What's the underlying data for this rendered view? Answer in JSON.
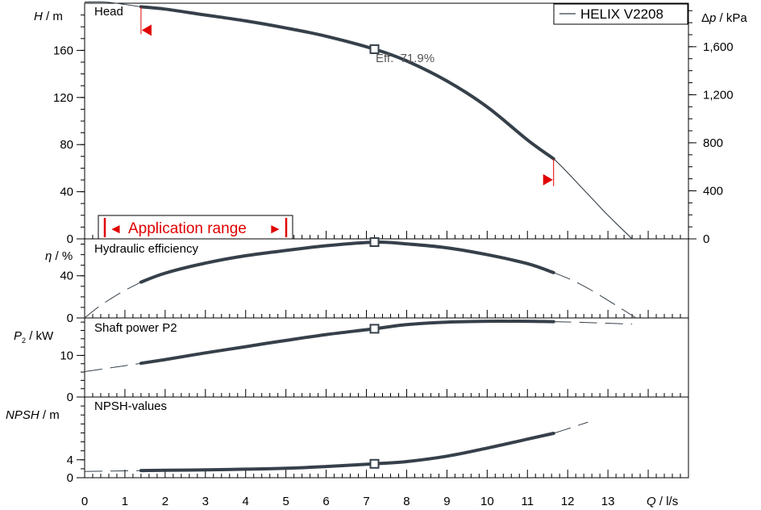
{
  "legend": {
    "label": "HELIX V2208"
  },
  "x_axis": {
    "label_var": "Q",
    "label_unit": "l/s",
    "ticks": [
      "0",
      "1",
      "2",
      "3",
      "4",
      "5",
      "6",
      "7",
      "8",
      "9",
      "10",
      "11",
      "12",
      "13"
    ]
  },
  "annotations": {
    "efficiency": "Eff.  71.9%",
    "application_range": "Application range",
    "left_arrow": "◄",
    "right_arrow": "►"
  },
  "chart_data": [
    {
      "type": "line",
      "panel": "head",
      "title": "Head",
      "ylabel_var": "H",
      "ylabel_unit": "m",
      "ylabel2_prefix": "Δ",
      "ylabel2_var": "p",
      "ylabel2_unit": "kPa",
      "xlim": [
        0,
        15
      ],
      "ylim": [
        0,
        200
      ],
      "y_ticks": [
        "0",
        "40",
        "80",
        "120",
        "160"
      ],
      "y2_ticks": [
        "0",
        "400",
        "800",
        "1,200",
        "1,600"
      ],
      "series": [
        {
          "name": "HELIX V2208",
          "style": "full-curve",
          "x": [
            0,
            0.5,
            1,
            1.4,
            2,
            3,
            4,
            5,
            6,
            7.2,
            8,
            9,
            10,
            11,
            11.65,
            12.5,
            13,
            13.6
          ],
          "y": [
            201,
            201,
            199,
            197,
            195,
            190,
            185,
            179,
            172,
            161,
            151,
            134,
            112,
            84,
            68,
            38,
            20,
            0
          ]
        },
        {
          "name": "HELIX V2208",
          "style": "operating-range",
          "x": [
            1.4,
            2,
            3,
            4,
            5,
            6,
            7.2,
            8,
            9,
            10,
            11,
            11.65
          ],
          "y": [
            197,
            195,
            190,
            185,
            179,
            172,
            161,
            151,
            134,
            112,
            84,
            68
          ]
        }
      ],
      "duty_point": {
        "x": 7.2,
        "y": 161
      },
      "range_limits": {
        "q_min": 1.4,
        "q_max": 11.65
      }
    },
    {
      "type": "line",
      "panel": "efficiency",
      "title": "Hydraulic efficiency",
      "ylabel_var": "η",
      "ylabel_unit": "%",
      "xlim": [
        0,
        15
      ],
      "ylim": [
        0,
        75
      ],
      "y_ticks": [
        "0",
        "40"
      ],
      "series": [
        {
          "name": "efficiency",
          "x": [
            1.4,
            2,
            3,
            4,
            5,
            6,
            7.2,
            8,
            9,
            10,
            11,
            11.65
          ],
          "y": [
            34,
            42.5,
            52,
            59,
            64,
            68.5,
            71.9,
            70.2,
            66.5,
            60,
            51.5,
            43
          ]
        }
      ],
      "extension": {
        "x": [
          0,
          0.4,
          0.9,
          1.4,
          11.65,
          12.1,
          12.6,
          13.2,
          13.7
        ],
        "y": [
          0,
          12,
          24,
          34,
          43,
          36,
          26,
          12,
          0
        ]
      },
      "duty_point": {
        "x": 7.2,
        "y": 71.9
      }
    },
    {
      "type": "line",
      "panel": "power",
      "title": "Shaft power P2",
      "ylabel_var": "P",
      "ylabel_sub": "2",
      "ylabel_unit": "kW",
      "xlim": [
        0,
        15
      ],
      "ylim": [
        0,
        19
      ],
      "y_ticks": [
        "0",
        "10"
      ],
      "series": [
        {
          "name": "P2",
          "x": [
            1.4,
            2,
            3,
            4,
            5,
            6,
            7.2,
            8,
            9,
            10,
            11,
            11.65
          ],
          "y": [
            8.1,
            9,
            10.6,
            12.1,
            13.6,
            15,
            16.4,
            17.4,
            18,
            18.2,
            18.2,
            18.1
          ]
        }
      ],
      "extension": {
        "x": [
          0,
          0.7,
          1.4,
          11.65,
          12.5,
          13.6
        ],
        "y": [
          6.1,
          7.1,
          8.1,
          18.1,
          17.9,
          17.5
        ]
      },
      "duty_point": {
        "x": 7.2,
        "y": 16.4
      }
    },
    {
      "type": "line",
      "panel": "npsh",
      "title": "NPSH-values",
      "ylabel_var": "NPSH",
      "ylabel_unit": "m",
      "xlim": [
        0,
        15
      ],
      "ylim": [
        0,
        18
      ],
      "y_ticks": [
        "0",
        "4"
      ],
      "series": [
        {
          "name": "NPSH",
          "x": [
            1.4,
            2,
            3,
            4,
            5,
            6,
            7.2,
            8,
            9,
            10,
            11,
            11.65
          ],
          "y": [
            1.6,
            1.65,
            1.75,
            1.9,
            2.1,
            2.5,
            3.1,
            3.6,
            4.8,
            6.6,
            8.6,
            9.9
          ]
        }
      ],
      "extension": {
        "x": [
          0,
          0.7,
          1.4,
          11.65,
          12.1,
          12.5
        ],
        "y": [
          1.4,
          1.5,
          1.6,
          9.9,
          11.2,
          12.4
        ]
      },
      "duty_point": {
        "x": 7.2,
        "y": 3.1
      }
    }
  ]
}
